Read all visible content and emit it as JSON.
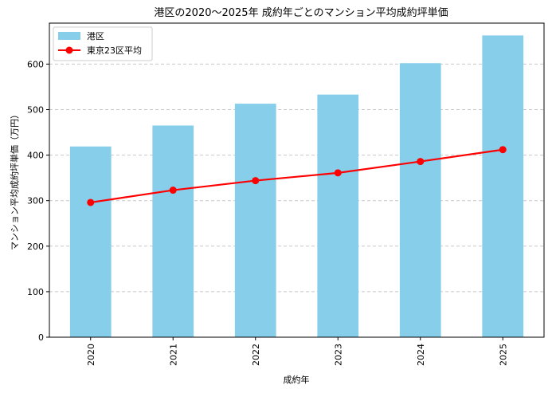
{
  "chart_data": {
    "type": "bar+line",
    "title": "港区の2020〜2025年 成約年ごとのマンション平均成約坪単価",
    "xlabel": "成約年",
    "ylabel": "マンション平均成約坪単価（万円）",
    "categories": [
      "2020",
      "2021",
      "2022",
      "2023",
      "2024",
      "2025"
    ],
    "ylim": [
      0,
      690
    ],
    "yticks": [
      0,
      100,
      200,
      300,
      400,
      500,
      600
    ],
    "grid": "horizontal-dashed",
    "legend_position": "top-left",
    "series": [
      {
        "name": "港区",
        "kind": "bar",
        "color": "#87ceeb",
        "values": [
          419,
          465,
          513,
          533,
          602,
          663
        ]
      },
      {
        "name": "東京23区平均",
        "kind": "line",
        "color": "#ff0000",
        "values": [
          296,
          323,
          344,
          361,
          386,
          412
        ]
      }
    ]
  }
}
